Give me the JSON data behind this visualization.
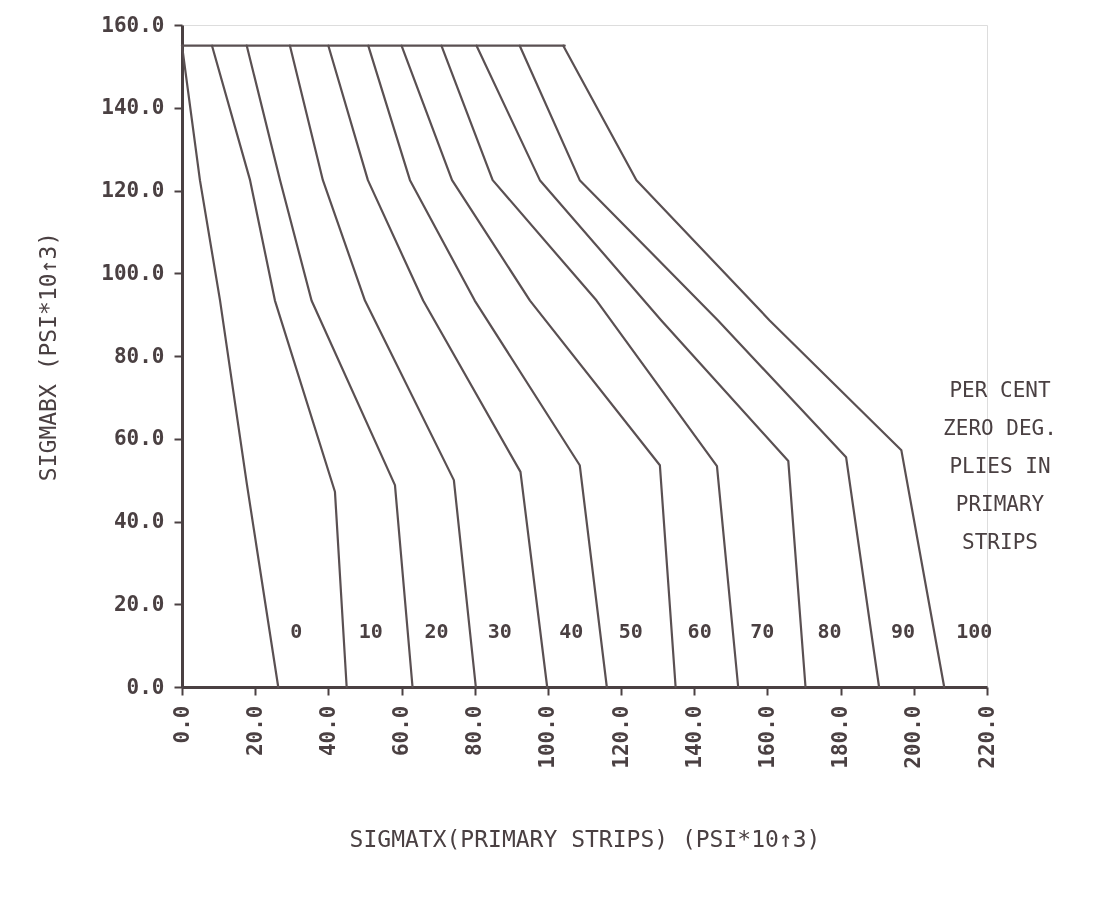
{
  "chart_data": {
    "type": "line",
    "xlabel": "SIGMATX(PRIMARY STRIPS)  (PSI*10↑3)",
    "ylabel": "SIGMABX (PSI*10↑3)",
    "xlim": [
      0,
      220
    ],
    "ylim": [
      0,
      160
    ],
    "xticks": [
      {
        "value": 0,
        "label": "0.0"
      },
      {
        "value": 20,
        "label": "20.0"
      },
      {
        "value": 40,
        "label": "40.0"
      },
      {
        "value": 60,
        "label": "60.0"
      },
      {
        "value": 80,
        "label": "80.0"
      },
      {
        "value": 100,
        "label": "100.0"
      },
      {
        "value": 120,
        "label": "120.0"
      },
      {
        "value": 140,
        "label": "140.0"
      },
      {
        "value": 160,
        "label": "160.0"
      },
      {
        "value": 180,
        "label": "180.0"
      },
      {
        "value": 200,
        "label": "200.0"
      },
      {
        "value": 220,
        "label": "220.0"
      }
    ],
    "yticks": [
      {
        "value": 0,
        "label": "0.0"
      },
      {
        "value": 20,
        "label": "20.0"
      },
      {
        "value": 40,
        "label": "40.0"
      },
      {
        "value": 60,
        "label": "60.0"
      },
      {
        "value": 80,
        "label": "80.0"
      },
      {
        "value": 100,
        "label": "100.0"
      },
      {
        "value": 120,
        "label": "120.0"
      },
      {
        "value": 140,
        "label": "140.0"
      },
      {
        "value": 160,
        "label": "160.0"
      }
    ],
    "grid": false,
    "marker": "none",
    "line_style": "solid",
    "annotations": [
      "PER CENT\nZERO DEG.\nPLIES IN\nPRIMARY\nSTRIPS"
    ],
    "series": [
      {
        "name": "0",
        "color": "#5a5052",
        "x": [
          0,
          4.9,
          10.4,
          17.7,
          26.3
        ],
        "values": [
          155,
          122.5,
          93.4,
          49.2,
          0
        ]
      },
      {
        "name": "10",
        "color": "#5a5052",
        "x": [
          8.2,
          18.6,
          25.4,
          41.8,
          45.0
        ],
        "values": [
          155,
          122.5,
          93.4,
          47.2,
          0
        ]
      },
      {
        "name": "20",
        "color": "#5a5052",
        "x": [
          17.7,
          26.8,
          35.4,
          58.2,
          63.0
        ],
        "values": [
          155,
          122.5,
          93.4,
          48.8,
          0
        ]
      },
      {
        "name": "30",
        "color": "#5a5052",
        "x": [
          29.5,
          38.5,
          50.0,
          74.3,
          80.3
        ],
        "values": [
          155,
          122.5,
          93.4,
          50.0,
          0
        ]
      },
      {
        "name": "40",
        "color": "#5a5052",
        "x": [
          40.0,
          50.8,
          65.9,
          92.5,
          99.8
        ],
        "values": [
          155,
          122.5,
          93.4,
          52.0,
          0
        ]
      },
      {
        "name": "50",
        "color": "#5a5052",
        "x": [
          50.9,
          62.3,
          80.0,
          108.7,
          116.1
        ],
        "values": [
          155,
          122.5,
          93.4,
          53.6,
          0
        ]
      },
      {
        "name": "60",
        "color": "#5a5052",
        "x": [
          60.0,
          73.8,
          95.1,
          130.6,
          134.9
        ],
        "values": [
          155,
          122.5,
          93.4,
          53.6,
          0
        ]
      },
      {
        "name": "70",
        "color": "#5a5052",
        "x": [
          70.9,
          84.9,
          113.3,
          146.2,
          152.0
        ],
        "values": [
          155,
          122.5,
          93.4,
          53.4,
          0
        ]
      },
      {
        "name": "80",
        "color": "#5a5052",
        "x": [
          80.5,
          97.8,
          131.0,
          165.7,
          170.4
        ],
        "values": [
          155,
          122.5,
          88.6,
          54.6,
          0
        ]
      },
      {
        "name": "90",
        "color": "#5a5052",
        "x": [
          92.3,
          108.7,
          146.5,
          181.5,
          190.5
        ],
        "values": [
          155,
          122.5,
          88.6,
          55.5,
          0
        ]
      },
      {
        "name": "100",
        "color": "#5a5052",
        "x": [
          104.2,
          124.2,
          160.6,
          196.6,
          208.3
        ],
        "values": [
          155,
          122.5,
          88.6,
          57.2,
          0
        ]
      },
      {
        "color": "#5a5052",
        "x": [
          0,
          104.6
        ],
        "values": [
          155,
          155
        ]
      }
    ]
  }
}
